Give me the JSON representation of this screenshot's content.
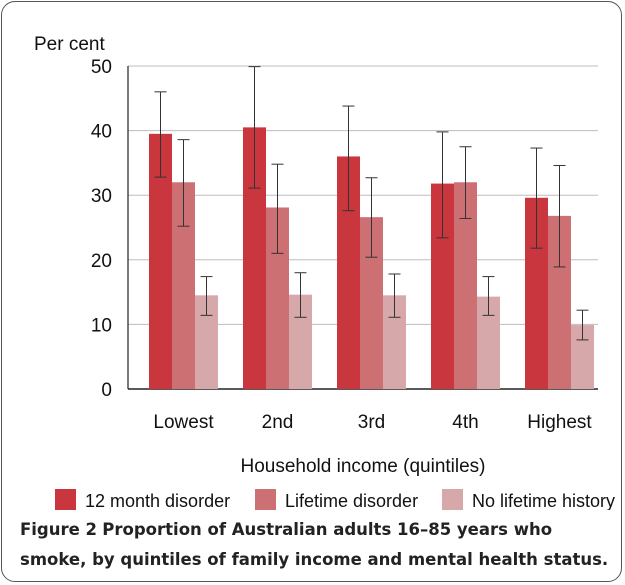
{
  "chart_data": {
    "type": "bar",
    "ylabel": "Per cent",
    "xlabel": "Household income (quintiles)",
    "categories": [
      "Lowest",
      "2nd",
      "3rd",
      "4th",
      "Highest"
    ],
    "ylim": [
      0,
      50
    ],
    "yticks": [
      0,
      10,
      20,
      30,
      40,
      50
    ],
    "grid": true,
    "legend_position": "bottom",
    "series": [
      {
        "name": "12 month disorder",
        "color": "#c9363e",
        "values": [
          39.5,
          40.5,
          36,
          31.8,
          29.6
        ],
        "err_low": [
          32.8,
          31.1,
          27.6,
          23.4,
          21.8
        ],
        "err_high": [
          46,
          49.9,
          43.8,
          39.8,
          37.3
        ]
      },
      {
        "name": "Lifetime disorder",
        "color": "#cd7074",
        "values": [
          32,
          28.1,
          26.6,
          32,
          26.8
        ],
        "err_low": [
          25.2,
          21,
          20.4,
          26.4,
          18.9
        ],
        "err_high": [
          38.6,
          34.8,
          32.7,
          37.5,
          34.6
        ]
      },
      {
        "name": "No lifetime history",
        "color": "#d6a8aa",
        "values": [
          14.5,
          14.6,
          14.5,
          14.3,
          9.9
        ],
        "err_low": [
          11.4,
          11.1,
          11.1,
          11.4,
          7.6
        ],
        "err_high": [
          17.4,
          18,
          17.8,
          17.4,
          12.2
        ]
      }
    ]
  },
  "caption": {
    "label": "Figure 2",
    "text": "Proportion of Australian adults 16–85 years who smoke, by quintiles of family income and mental health status."
  }
}
